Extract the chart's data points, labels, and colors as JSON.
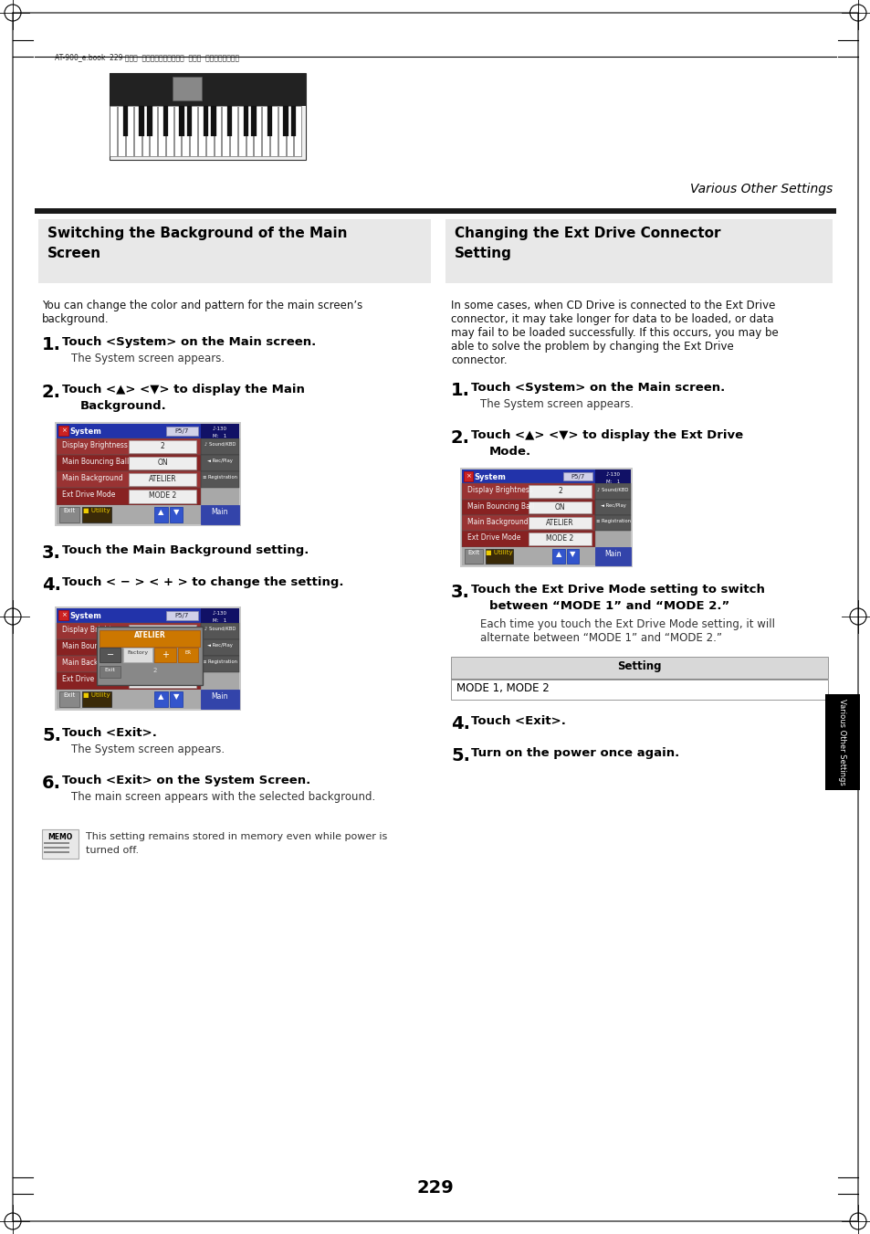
{
  "page_background": "#ffffff",
  "page_number": "229",
  "header_text": "AT-900_e.book  229 ページ  ２００８年９月１６日  火曜日  午前１０時３８分",
  "section_right_top": "Various Other Settings",
  "left_section_title_line1": "Switching the Background of the Main",
  "left_section_title_line2": "Screen",
  "right_section_title_line1": "Changing the Ext Drive Connector",
  "right_section_title_line2": "Setting",
  "left_section_bg": "#e8e8e8",
  "right_section_bg": "#e8e8e8",
  "left_body_text_line1": "You can change the color and pattern for the main screen’s",
  "left_body_text_line2": "background.",
  "right_body_text_line1": "In some cases, when CD Drive is connected to the Ext Drive",
  "right_body_text_line2": "connector, it may take longer for data to be loaded, or data",
  "right_body_text_line3": "may fail to be loaded successfully. If this occurs, you may be",
  "right_body_text_line4": "able to solve the problem by changing the Ext Drive",
  "right_body_text_line5": "connector.",
  "memo_text_line1": "This setting remains stored in memory even while power is",
  "memo_text_line2": "turned off.",
  "sidebar_text": "Various Other Settings",
  "black_tab_color": "#000000",
  "divider_color": "#1a1a1a",
  "screen_bg_color": "#8b7355",
  "screen_titlebar_color": "#2233aa",
  "screen_row_color": "#993333",
  "screen_row_alt_color": "#aa2222",
  "screen_value_bg": "#e8e8e0",
  "screen_side_panel": "#b0b0b0",
  "screen_side_dark": "#555555",
  "screen_bottom_bar": "#999999",
  "screen_exit_btn": "#777777",
  "screen_utility_btn": "#3a2a0a",
  "screen_arrow_btn": "#3355cc",
  "screen_main_btn": "#3344aa"
}
